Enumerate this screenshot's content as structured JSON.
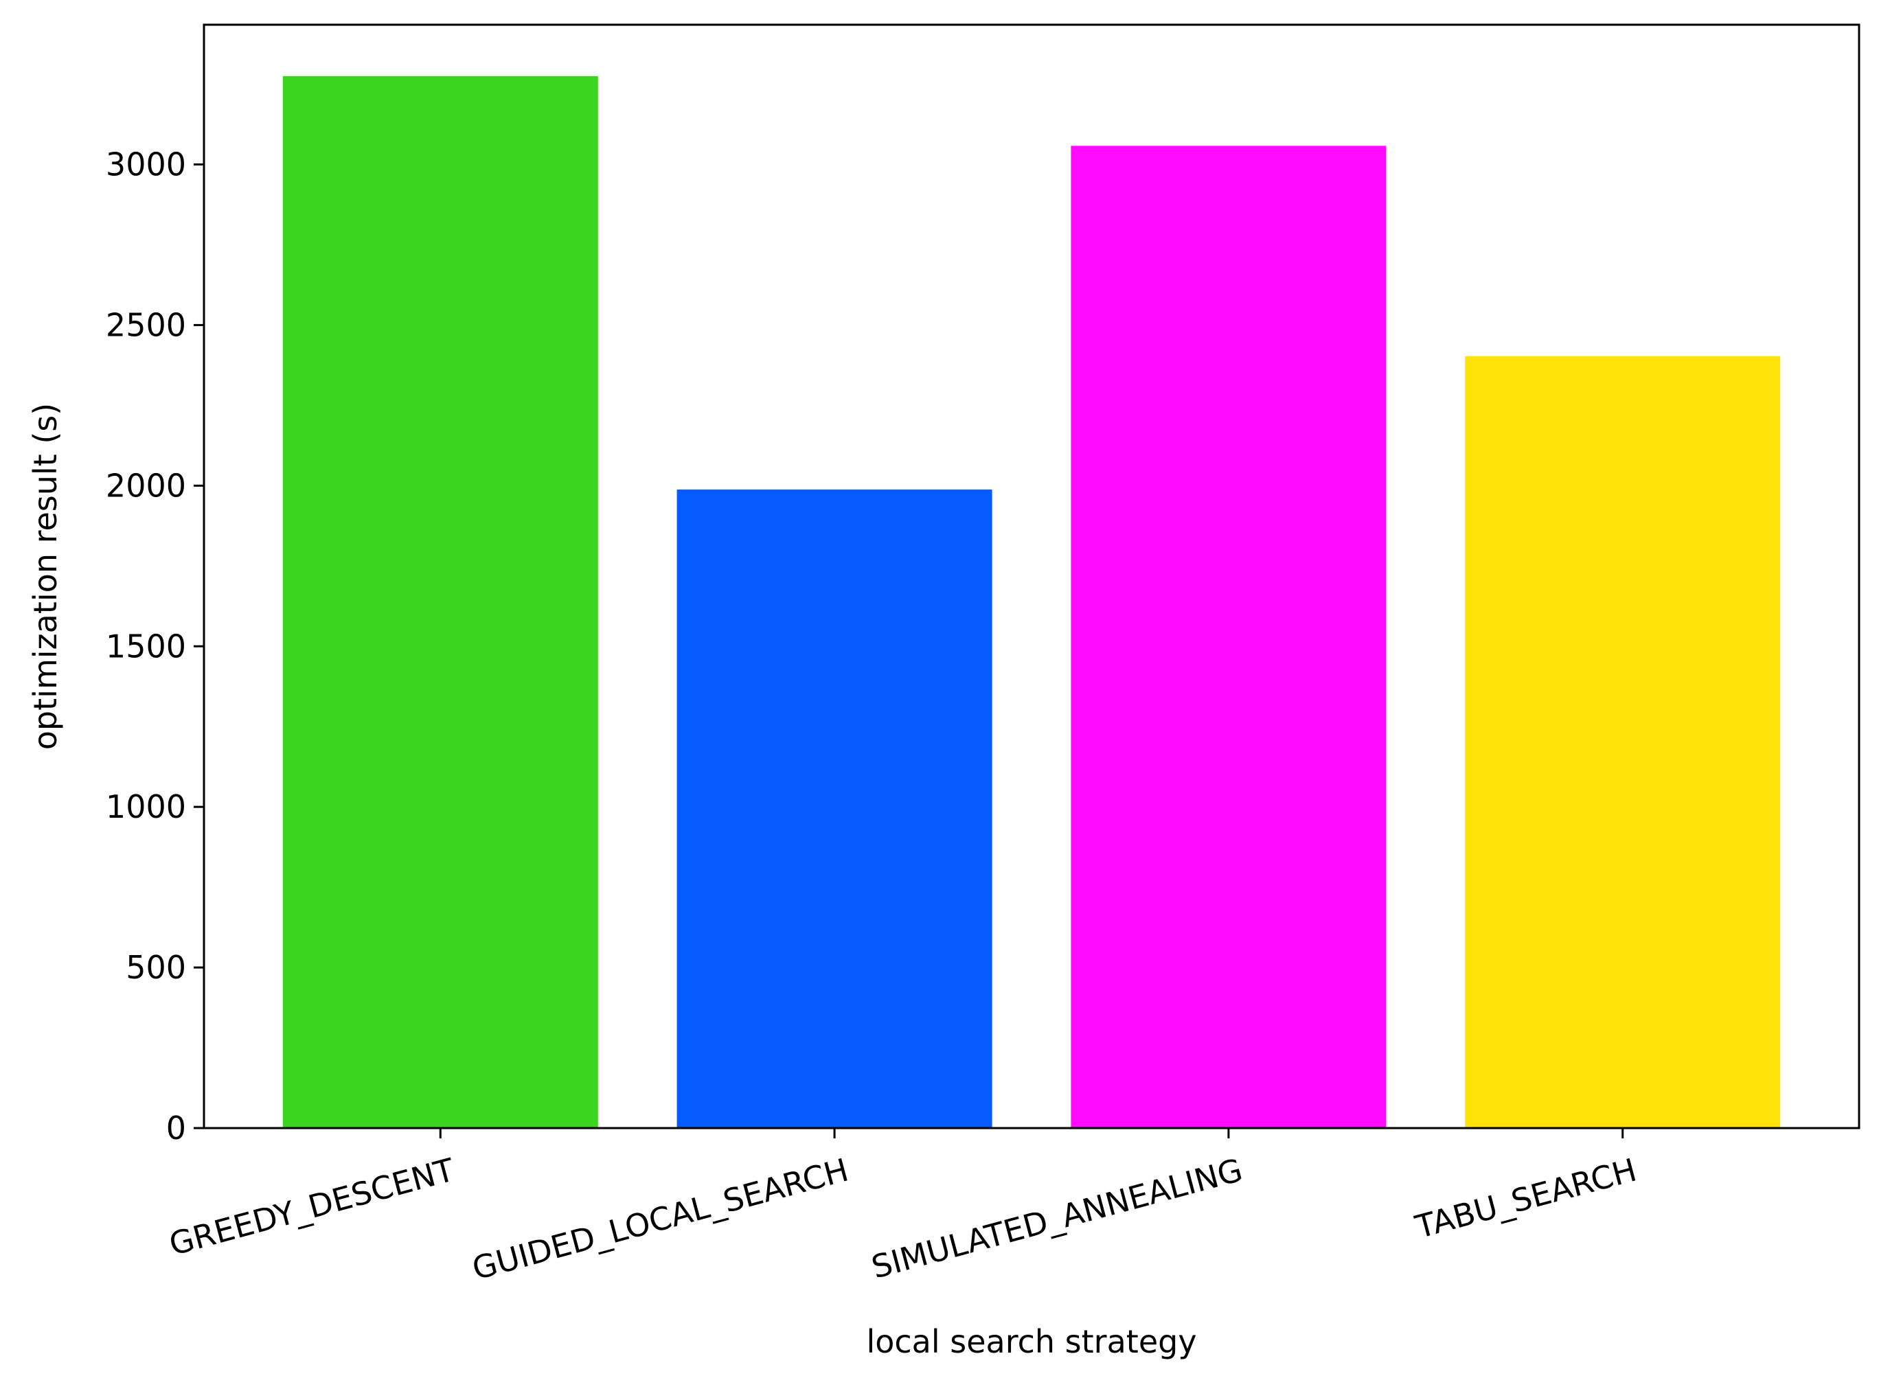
{
  "chart_data": {
    "type": "bar",
    "title": "",
    "xlabel": "local search strategy",
    "ylabel": "optimization result (s)",
    "categories": [
      "GREEDY_DESCENT",
      "GUIDED_LOCAL_SEARCH",
      "SIMULATED_ANNEALING",
      "TABU_SEARCH"
    ],
    "values": [
      3275,
      1988,
      3058,
      2403
    ],
    "colors": [
      "#3bd41e",
      "#065bff",
      "#ff0aff",
      "#ffe308"
    ],
    "ylim": [
      0,
      3435
    ],
    "yticks": [
      0,
      500,
      1000,
      1500,
      2000,
      2500,
      3000
    ],
    "ytick_labels": [
      "0",
      "500",
      "1000",
      "1500",
      "2000",
      "2500",
      "3000"
    ],
    "grid": false,
    "legend": "none"
  }
}
